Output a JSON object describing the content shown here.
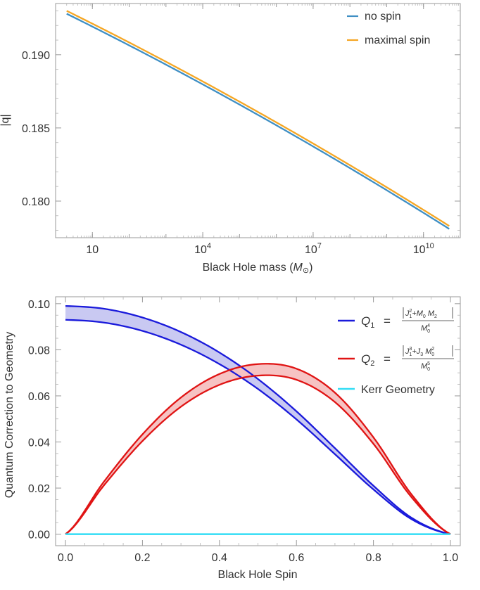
{
  "chart_data": [
    {
      "type": "line",
      "title": "",
      "xlabel": "Black Hole mass (",
      "xlabel_symbol": "M",
      "xlabel_subscript": "⊙",
      "xlabel_end": ")",
      "ylabel": "|q|",
      "x_scale": "log",
      "xlim": [
        1,
        100000000000
      ],
      "ylim": [
        0.1775,
        0.1935
      ],
      "x_ticks": [
        {
          "value": 10,
          "base": "10",
          "exp": ""
        },
        {
          "value": 10000,
          "base": "10",
          "exp": "4"
        },
        {
          "value": 10000000,
          "base": "10",
          "exp": "7"
        },
        {
          "value": 10000000000,
          "base": "10",
          "exp": "10"
        }
      ],
      "y_ticks": [
        "0.180",
        "0.185",
        "0.190"
      ],
      "y_tick_values": [
        0.18,
        0.185,
        0.19
      ],
      "legend_position": "top-right",
      "grid": false,
      "series": [
        {
          "name": "no spin",
          "color": "#3f8fc4",
          "x": [
            2,
            10,
            100,
            1000,
            10000,
            100000,
            1000000,
            10000000,
            100000000,
            1000000000,
            10000000000,
            50000000000
          ],
          "y": [
            0.1928,
            0.1914,
            0.1895,
            0.1877,
            0.1859,
            0.1841,
            0.1824,
            0.1807,
            0.1791,
            0.1818,
            0.179,
            0.1781
          ]
        },
        {
          "name": "maximal spin",
          "color": "#f5a623",
          "x": [
            2,
            10,
            100,
            1000,
            10000,
            100000,
            1000000,
            10000000,
            100000000,
            1000000000,
            10000000000,
            50000000000
          ],
          "y": [
            0.193,
            0.1916,
            0.1897,
            0.1879,
            0.1861,
            0.1843,
            0.1826,
            0.1809,
            0.1793,
            0.182,
            0.1792,
            0.1783
          ]
        }
      ]
    },
    {
      "type": "area",
      "title": "",
      "xlabel": "Black Hole Spin",
      "ylabel": "Quantum Correction to Geometry",
      "xlim": [
        0,
        1
      ],
      "ylim": [
        -0.005,
        0.103
      ],
      "x_ticks": [
        "0.0",
        "0.2",
        "0.4",
        "0.6",
        "0.8",
        "1.0"
      ],
      "x_tick_values": [
        0,
        0.2,
        0.4,
        0.6,
        0.8,
        1.0
      ],
      "y_ticks": [
        "0.00",
        "0.02",
        "0.04",
        "0.06",
        "0.08",
        "0.10"
      ],
      "y_tick_values": [
        0,
        0.02,
        0.04,
        0.06,
        0.08,
        0.1
      ],
      "legend_position": "top-right",
      "grid": false,
      "series": [
        {
          "name": "Q1",
          "color": "#1a1adb",
          "fill": "#c9c9f2",
          "x": [
            0,
            0.1,
            0.2,
            0.3,
            0.4,
            0.5,
            0.6,
            0.7,
            0.8,
            0.9,
            1.0
          ],
          "upper": [
            0.099,
            0.0978,
            0.094,
            0.0877,
            0.0788,
            0.0673,
            0.0533,
            0.0373,
            0.021,
            0.007,
            0.0
          ],
          "lower": [
            0.093,
            0.0918,
            0.0882,
            0.0822,
            0.0738,
            0.063,
            0.0498,
            0.0347,
            0.0194,
            0.0064,
            0.0
          ]
        },
        {
          "name": "Q2",
          "color": "#e01414",
          "fill": "#f6c3c3",
          "x": [
            0,
            0.1,
            0.2,
            0.3,
            0.4,
            0.5,
            0.6,
            0.7,
            0.8,
            0.9,
            1.0
          ],
          "upper": [
            0.0,
            0.0228,
            0.0433,
            0.0593,
            0.0695,
            0.0738,
            0.0718,
            0.0614,
            0.042,
            0.017,
            0.0
          ],
          "lower": [
            0.0,
            0.0212,
            0.0404,
            0.0553,
            0.0648,
            0.0688,
            0.067,
            0.0573,
            0.0392,
            0.0158,
            0.0
          ]
        },
        {
          "name": "Kerr Geometry",
          "color": "#33ddf5",
          "x": [
            0,
            1
          ],
          "y": [
            0,
            0
          ]
        }
      ],
      "legend": [
        {
          "label": "Q",
          "sub": "1",
          "eq": "=",
          "num_a": "J",
          "num_a_sup": "2",
          "num_a_sub": "1",
          "num_b": "+M",
          "num_b_sub": "0",
          "num_c": " M",
          "num_c_sub": "2",
          "den": "M",
          "den_sup": "4",
          "den_sub": "0"
        },
        {
          "label": "Q",
          "sub": "2",
          "eq": "=",
          "num_a": "J",
          "num_a_sup": "3",
          "num_a_sub": "1",
          "num_b": "+J",
          "num_b_sub": "3",
          "num_c": " M",
          "num_c_sup": "2",
          "num_c_sub": "0",
          "den": "M",
          "den_sup": "5",
          "den_sub": "0"
        },
        {
          "label": "Kerr Geometry"
        }
      ]
    }
  ]
}
